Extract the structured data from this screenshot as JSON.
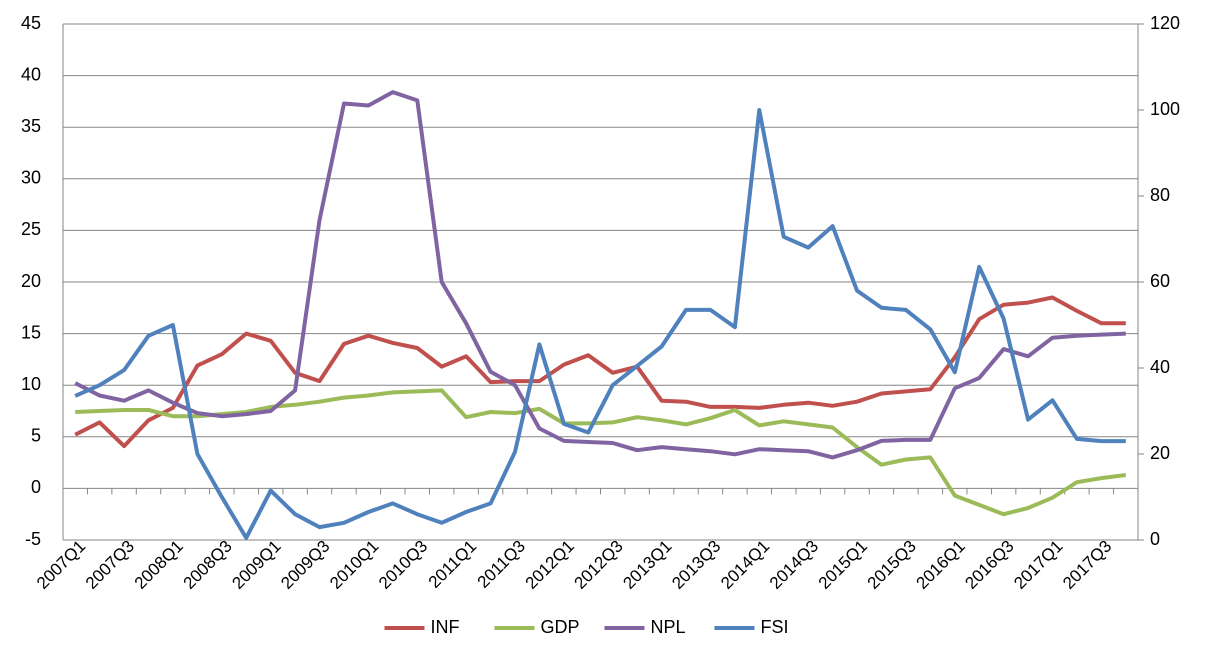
{
  "chart_data": {
    "type": "line",
    "categories": [
      "2007Q1",
      null,
      "2007Q3",
      null,
      "2008Q1",
      null,
      "2008Q3",
      null,
      "2009Q1",
      null,
      "2009Q3",
      null,
      "2010Q1",
      null,
      "2010Q3",
      null,
      "2011Q1",
      null,
      "2011Q3",
      null,
      "2012Q1",
      null,
      "2012Q3",
      null,
      "2013Q1",
      null,
      "2013Q3",
      null,
      "2014Q1",
      null,
      "2014Q3",
      null,
      "2015Q1",
      null,
      "2015Q3",
      null,
      "2016Q1",
      null,
      "2016Q3",
      null,
      "2017Q1",
      null,
      "2017Q3",
      null
    ],
    "series": [
      {
        "name": "INF",
        "color": "#c0504d",
        "values": [
          5.2,
          6.4,
          4.1,
          6.6,
          7.8,
          11.9,
          13.0,
          15.0,
          14.3,
          11.2,
          10.4,
          14.0,
          14.8,
          14.1,
          13.6,
          11.8,
          12.8,
          10.3,
          10.4,
          10.4,
          12.0,
          12.9,
          11.2,
          11.8,
          8.5,
          8.4,
          7.9,
          7.9,
          7.8,
          8.1,
          8.3,
          8.0,
          8.4,
          9.2,
          9.4,
          9.6,
          12.7,
          16.4,
          17.8,
          18.0,
          18.5,
          17.2,
          16.0,
          16.0
        ]
      },
      {
        "name": "GDP",
        "color": "#9bbb59",
        "values": [
          7.4,
          7.5,
          7.6,
          7.6,
          7.0,
          7.0,
          7.2,
          7.4,
          7.9,
          8.1,
          8.4,
          8.8,
          9.0,
          9.3,
          9.4,
          9.5,
          6.9,
          7.4,
          7.3,
          7.7,
          6.3,
          6.3,
          6.4,
          6.9,
          6.6,
          6.2,
          6.8,
          7.6,
          6.1,
          6.5,
          6.2,
          5.9,
          4.0,
          2.3,
          2.8,
          3.0,
          -0.7,
          -1.6,
          -2.5,
          -1.9,
          -0.9,
          0.6,
          1.0,
          1.3
        ]
      },
      {
        "name": "NPL",
        "color": "#8064a2",
        "values": [
          10.2,
          9.0,
          8.5,
          9.5,
          8.3,
          7.3,
          7.0,
          7.2,
          7.5,
          9.5,
          26.0,
          37.3,
          37.1,
          38.4,
          37.6,
          20.0,
          16.0,
          11.3,
          10.0,
          5.8,
          4.6,
          4.5,
          4.4,
          3.7,
          4.0,
          3.8,
          3.6,
          3.3,
          3.8,
          3.7,
          3.6,
          3.0,
          3.7,
          4.6,
          4.7,
          4.7,
          9.7,
          10.7,
          13.5,
          12.8,
          14.6,
          14.8,
          14.9,
          15.0
        ]
      },
      {
        "name": "FSI",
        "color": "#4f81bd",
        "axis": "y2",
        "values": [
          33.5,
          36,
          39.5,
          47.5,
          50,
          20,
          10,
          0.5,
          11.5,
          6,
          3,
          4,
          6.5,
          8.5,
          6,
          4,
          6.5,
          8.5,
          20.5,
          45.5,
          27,
          25,
          36,
          40.5,
          45,
          53.5,
          53.5,
          49.5,
          100,
          70.5,
          68,
          73,
          58,
          54,
          53.5,
          49,
          39,
          63.5,
          51.5,
          28,
          32.5,
          23.5,
          23,
          23
        ]
      }
    ],
    "ylim": [
      -5,
      45
    ],
    "yticks": [
      -5,
      0,
      5,
      10,
      15,
      20,
      25,
      30,
      35,
      40,
      45
    ],
    "y2lim": [
      0,
      120
    ],
    "y2ticks": [
      0,
      20,
      40,
      60,
      80,
      100,
      120
    ],
    "grid": true,
    "legend": "bottom"
  }
}
